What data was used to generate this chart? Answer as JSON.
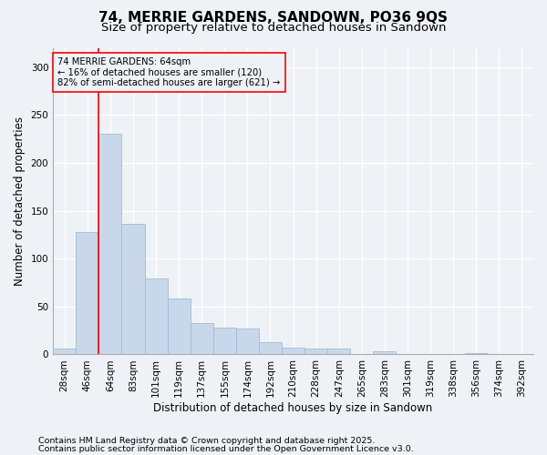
{
  "title": "74, MERRIE GARDENS, SANDOWN, PO36 9QS",
  "subtitle": "Size of property relative to detached houses in Sandown",
  "xlabel": "Distribution of detached houses by size in Sandown",
  "ylabel": "Number of detached properties",
  "footnote1": "Contains HM Land Registry data © Crown copyright and database right 2025.",
  "footnote2": "Contains public sector information licensed under the Open Government Licence v3.0.",
  "annotation_line1": "74 MERRIE GARDENS: 64sqm",
  "annotation_line2": "← 16% of detached houses are smaller (120)",
  "annotation_line3": "82% of semi-detached houses are larger (621) →",
  "bar_color": "#c8d8ea",
  "bar_edge_color": "#a0bcd0",
  "redline_index": 2,
  "categories": [
    "28sqm",
    "46sqm",
    "64sqm",
    "83sqm",
    "101sqm",
    "119sqm",
    "137sqm",
    "155sqm",
    "174sqm",
    "192sqm",
    "210sqm",
    "228sqm",
    "247sqm",
    "265sqm",
    "283sqm",
    "301sqm",
    "319sqm",
    "338sqm",
    "356sqm",
    "374sqm",
    "392sqm"
  ],
  "values": [
    6,
    128,
    230,
    136,
    79,
    58,
    33,
    28,
    27,
    13,
    7,
    6,
    6,
    0,
    3,
    0,
    0,
    0,
    1,
    0,
    0
  ],
  "ylim": [
    0,
    320
  ],
  "yticks": [
    0,
    50,
    100,
    150,
    200,
    250,
    300
  ],
  "bg_color": "#eef2f7",
  "grid_color": "#ffffff",
  "title_fontsize": 11,
  "subtitle_fontsize": 9.5,
  "axis_label_fontsize": 8.5,
  "tick_fontsize": 7.5,
  "footnote_fontsize": 6.8
}
